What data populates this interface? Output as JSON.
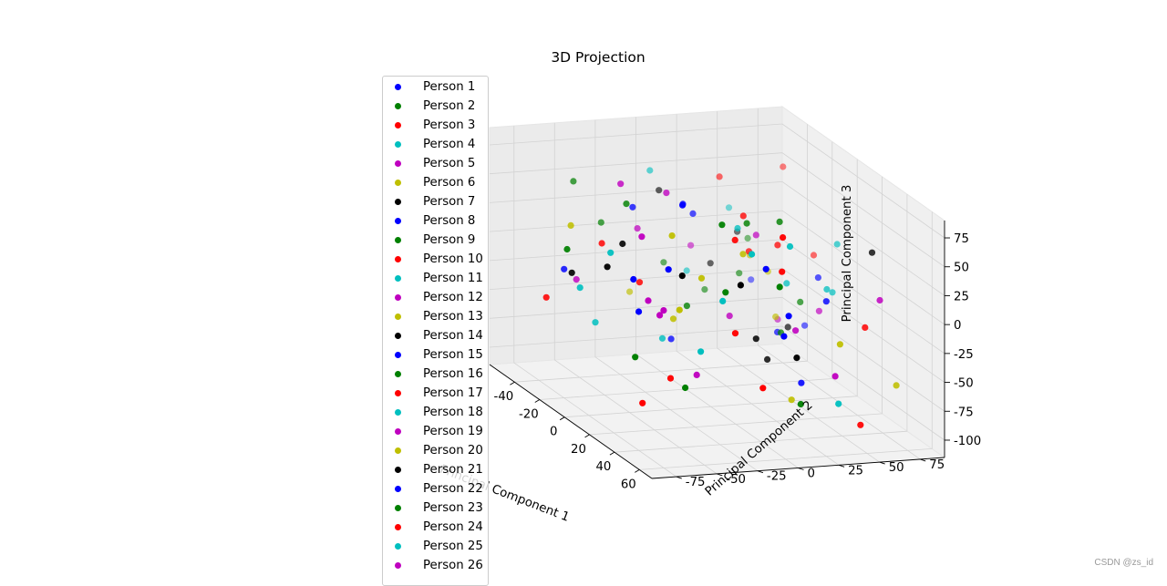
{
  "chart_data": {
    "type": "scatter",
    "projection": "3d",
    "title": "3D Projection",
    "xlabel": "Principal Component 1",
    "ylabel": "Principal Component 2",
    "zlabel": "Principal Component 3",
    "x_ticks": [
      "-40",
      "-20",
      "0",
      "20",
      "40",
      "60"
    ],
    "y_ticks": [
      "-75",
      "-50",
      "-25",
      "0",
      "25",
      "50",
      "75"
    ],
    "z_ticks": [
      "-100",
      "-75",
      "-50",
      "-25",
      "0",
      "25",
      "50",
      "75"
    ],
    "grid": true,
    "legend_placement": "upper left",
    "series": [
      {
        "name": "Person 1",
        "color": "#0000ff",
        "x": [
          -42,
          -30,
          -16,
          6,
          30,
          52
        ],
        "y": [
          -58,
          12,
          70,
          -22,
          48,
          -6
        ],
        "z": [
          -22,
          28,
          -64,
          66,
          -6,
          44
        ]
      },
      {
        "name": "Person 2",
        "color": "#008000",
        "x": [
          -58,
          -44,
          -24,
          0,
          22,
          46
        ],
        "y": [
          -40,
          30,
          -70,
          55,
          -10,
          20
        ],
        "z": [
          40,
          -50,
          10,
          -30,
          60,
          -80
        ]
      },
      {
        "name": "Person 3",
        "color": "#ff0000",
        "x": [
          -36,
          -18,
          4,
          26,
          44,
          60
        ],
        "y": [
          72,
          -30,
          38,
          -62,
          10,
          -14
        ],
        "z": [
          58,
          -18,
          24,
          -86,
          34,
          -52
        ]
      },
      {
        "name": "Person 4",
        "color": "#00bfbf",
        "x": [
          -48,
          -10,
          14,
          38,
          58
        ],
        "y": [
          22,
          -54,
          64,
          -4,
          34
        ],
        "z": [
          -36,
          16,
          -12,
          46,
          -72
        ]
      },
      {
        "name": "Person 5",
        "color": "#bf00bf",
        "x": [
          -38,
          -22,
          2,
          34,
          56
        ],
        "y": [
          -16,
          58,
          -44,
          26,
          -72
        ],
        "z": [
          12,
          -62,
          38,
          -26,
          18
        ]
      },
      {
        "name": "Person 6",
        "color": "#bfbf00",
        "x": [
          -26,
          -4,
          18,
          40,
          60
        ],
        "y": [
          44,
          -20,
          6,
          -50,
          68
        ],
        "z": [
          -8,
          -40,
          30,
          4,
          -58
        ]
      },
      {
        "name": "Person 7",
        "color": "#000000",
        "x": [
          -52,
          -28,
          -6,
          24,
          48
        ],
        "y": [
          8,
          -64,
          52,
          -36,
          16
        ],
        "z": [
          32,
          -14,
          -56,
          20,
          -38
        ]
      },
      {
        "name": "Person 8",
        "color": "#0000ff",
        "x": [
          -46,
          -12,
          10,
          36
        ],
        "y": [
          60,
          -8,
          -52,
          28
        ],
        "z": [
          -46,
          52,
          -20,
          -70
        ]
      },
      {
        "name": "Person 9",
        "color": "#008000",
        "x": [
          -54,
          -32,
          8,
          28,
          50
        ],
        "y": [
          -26,
          42,
          16,
          -68,
          4
        ],
        "z": [
          6,
          -28,
          48,
          -44,
          26
        ]
      },
      {
        "name": "Person 10",
        "color": "#ff0000",
        "x": [
          -40,
          -14,
          12,
          42
        ],
        "y": [
          36,
          74,
          -34,
          12
        ],
        "z": [
          50,
          -2,
          -78,
          62
        ]
      },
      {
        "name": "Person 11",
        "color": "#00bfbf",
        "x": [
          -30,
          -2,
          20,
          46
        ],
        "y": [
          -48,
          18,
          56,
          -28
        ],
        "z": [
          -60,
          36,
          -4,
          14
        ]
      },
      {
        "name": "Person 12",
        "color": "#bf00bf",
        "x": [
          -50,
          -20,
          6,
          32
        ],
        "y": [
          26,
          -12,
          62,
          -56
        ],
        "z": [
          -16,
          56,
          -34,
          -6
        ]
      },
      {
        "name": "Person 13",
        "color": "#bfbf00",
        "x": [
          -34,
          -8,
          16,
          54
        ],
        "y": [
          -60,
          46,
          -18,
          38
        ],
        "z": [
          22,
          -48,
          10,
          -24
        ]
      },
      {
        "name": "Person 14",
        "color": "#000000",
        "x": [
          -44,
          -16,
          14,
          38
        ],
        "y": [
          50,
          -42,
          24,
          70
        ],
        "z": [
          -2,
          18,
          -66,
          40
        ]
      },
      {
        "name": "Person 15",
        "color": "#0000ff",
        "x": [
          -24,
          0,
          26,
          52
        ],
        "y": [
          -6,
          66,
          -46,
          8
        ],
        "z": [
          -74,
          -10,
          28,
          2
        ]
      },
      {
        "name": "Person 16",
        "color": "#008000",
        "x": [
          -56,
          -26,
          4,
          30
        ],
        "y": [
          14,
          -32,
          40,
          -14
        ],
        "z": [
          -34,
          44,
          -52,
          8
        ]
      },
      {
        "name": "Person 17",
        "color": "#ff0000",
        "x": [
          -38,
          -6,
          22,
          48
        ],
        "y": [
          -72,
          28,
          -2,
          58
        ],
        "z": [
          -42,
          12,
          46,
          -16
        ]
      },
      {
        "name": "Person 18",
        "color": "#00bfbf",
        "x": [
          -48,
          -18,
          10,
          44
        ],
        "y": [
          48,
          -16,
          70,
          -40
        ],
        "z": [
          16,
          -68,
          26,
          -30
        ]
      },
      {
        "name": "Person 19",
        "color": "#bf00bf",
        "x": [
          -28,
          2,
          28,
          58
        ],
        "y": [
          -34,
          10,
          -60,
          32
        ],
        "z": [
          60,
          -36,
          4,
          -48
        ]
      },
      {
        "name": "Person 20",
        "color": "#bfbf00",
        "x": [
          -52,
          -22,
          8,
          36
        ],
        "y": [
          -10,
          52,
          -30,
          22
        ],
        "z": [
          -54,
          -20,
          42,
          -84
        ]
      },
      {
        "name": "Person 21",
        "color": "#000000",
        "x": [
          -42,
          -10,
          18,
          50
        ],
        "y": [
          32,
          -56,
          14,
          -20
        ],
        "z": [
          -26,
          4,
          -44,
          30
        ]
      },
      {
        "name": "Person 22",
        "color": "#0000ff",
        "x": [
          -34,
          -4,
          24,
          56
        ],
        "y": [
          -22,
          44,
          -66,
          2
        ],
        "z": [
          34,
          -58,
          20,
          -12
        ]
      },
      {
        "name": "Person 23",
        "color": "#008000",
        "x": [
          -46,
          -14,
          16,
          42
        ],
        "y": [
          58,
          -4,
          30,
          -48
        ],
        "z": [
          -10,
          -38,
          54,
          -62
        ]
      },
      {
        "name": "Person 24",
        "color": "#ff0000",
        "x": [
          -30,
          0,
          30,
          60
        ],
        "y": [
          -44,
          20,
          -8,
          46
        ],
        "z": [
          8,
          48,
          -28,
          -90
        ]
      },
      {
        "name": "Person 25",
        "color": "#00bfbf",
        "x": [
          -54,
          -24,
          6,
          40
        ],
        "y": [
          4,
          -62,
          42,
          18
        ],
        "z": [
          48,
          -24,
          -8,
          52
        ]
      },
      {
        "name": "Person 26",
        "color": "#bf00bf",
        "x": [
          -40,
          -8,
          20,
          52
        ],
        "y": [
          -52,
          34,
          -24,
          64
        ],
        "z": [
          -30,
          24,
          -70,
          10
        ]
      }
    ]
  },
  "watermark": "CSDN @zs_id"
}
